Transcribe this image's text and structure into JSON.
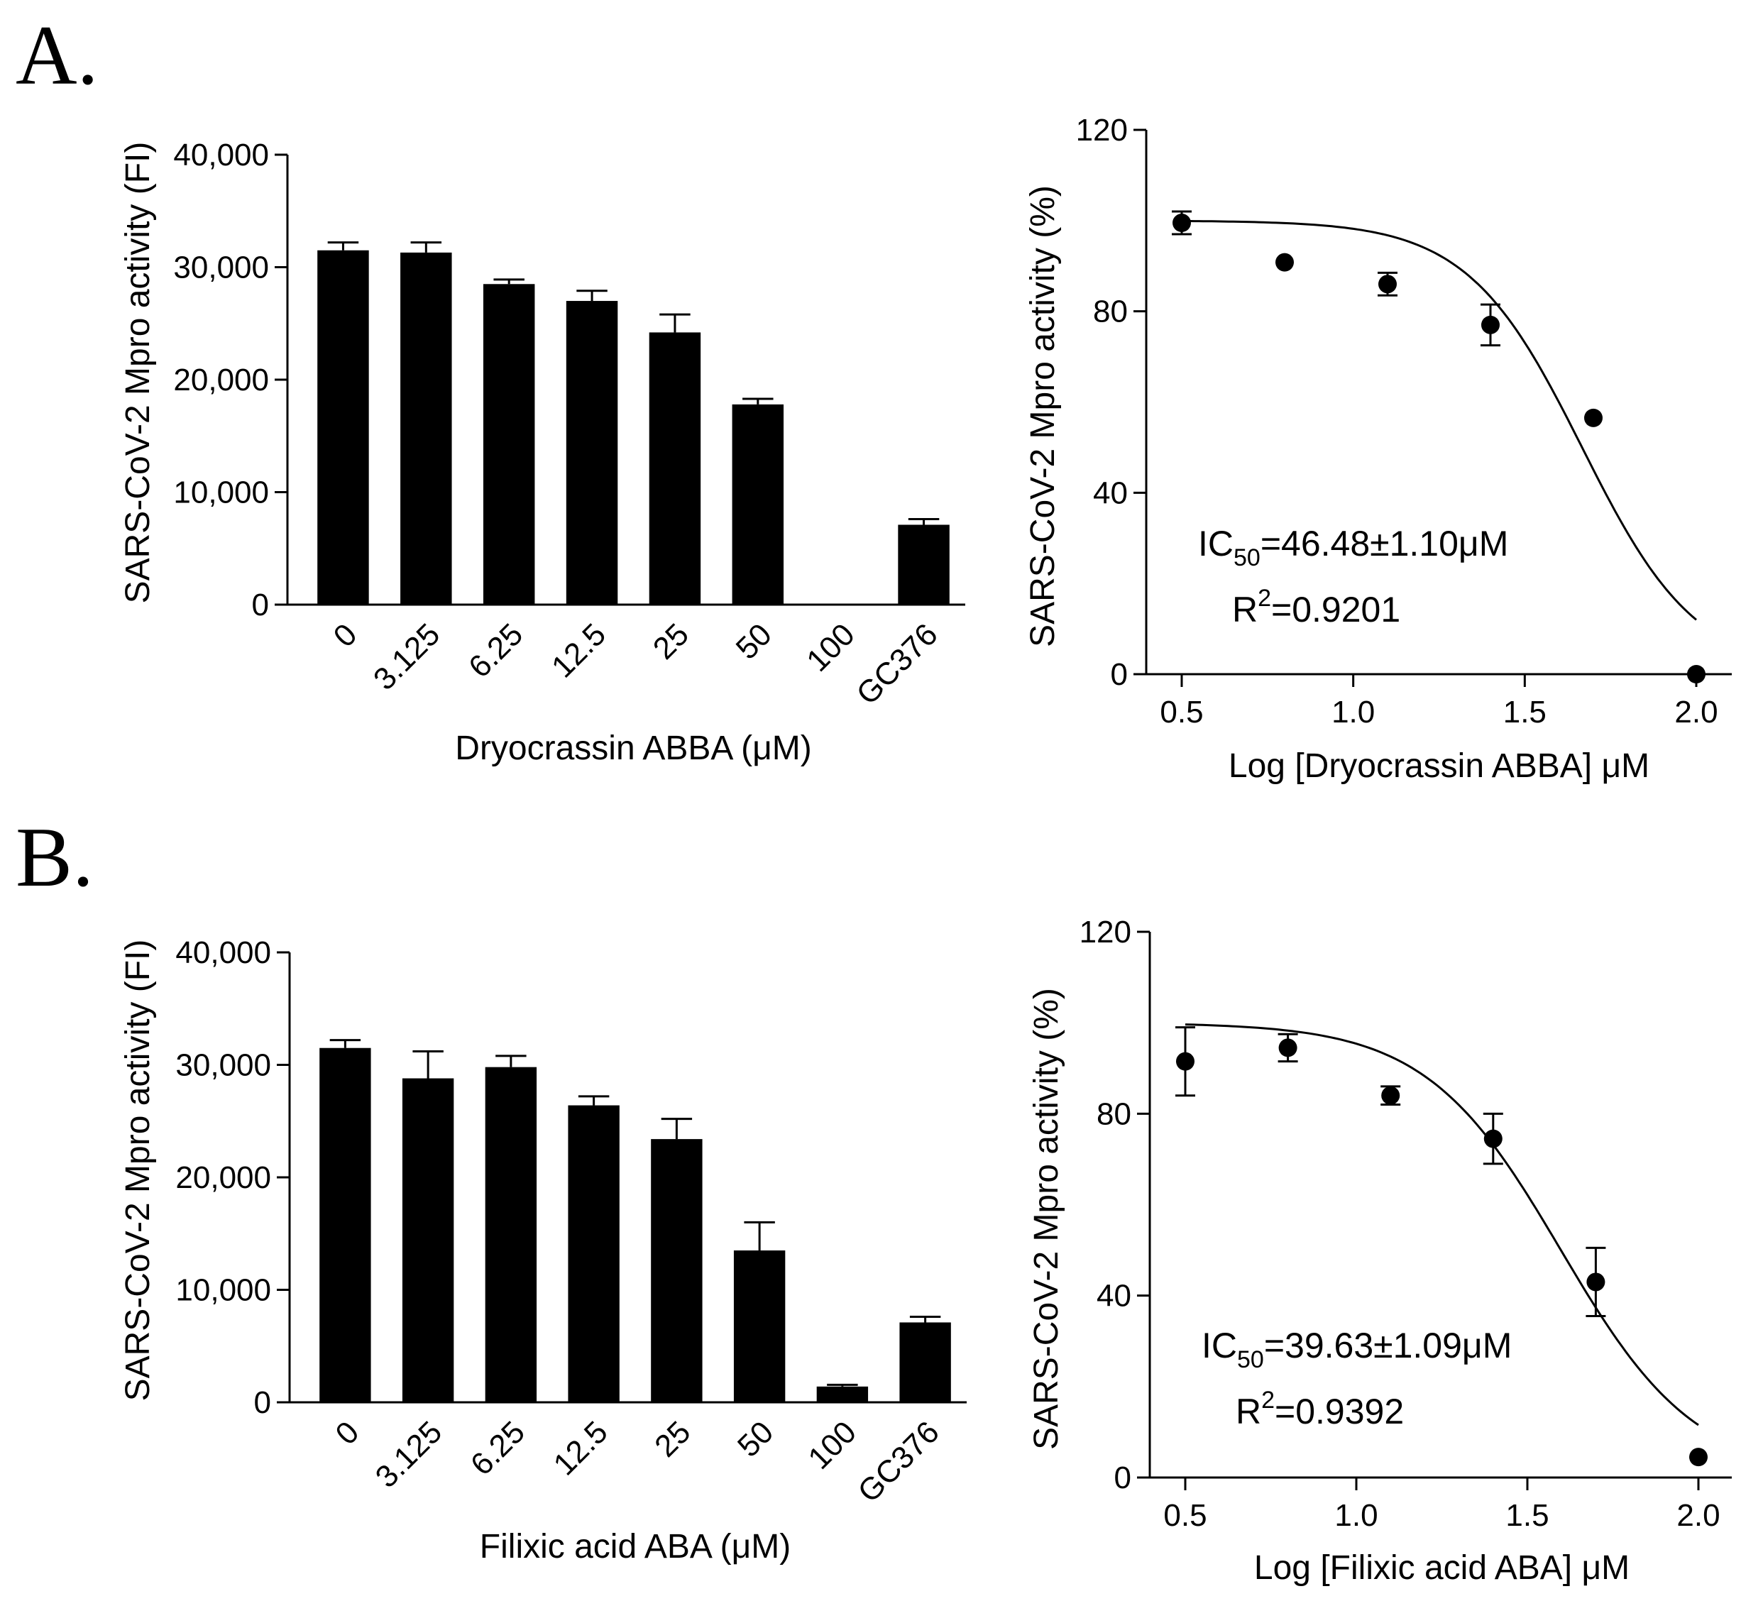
{
  "figure": {
    "panel_labels": [
      "A.",
      "B."
    ]
  },
  "chart_data": [
    {
      "id": "A-bar",
      "type": "bar",
      "categories": [
        "0",
        "3.125",
        "6.25",
        "12.5",
        "25",
        "50",
        "100",
        "GC376"
      ],
      "values": [
        31500,
        31300,
        28500,
        27000,
        24200,
        17800,
        0,
        7100
      ],
      "errors": [
        700,
        900,
        400,
        900,
        1600,
        500,
        0,
        500
      ],
      "xlabel": "Dryocrassin ABBA (μM)",
      "ylabel": "SARS-CoV-2 Mpro activity (FI)",
      "ylim": [
        0,
        40000
      ],
      "yticks": [
        0,
        10000,
        20000,
        30000,
        40000
      ],
      "ytick_labels": [
        "0",
        "10,000",
        "20,000",
        "30,000",
        "40,000"
      ],
      "color": "#000000"
    },
    {
      "id": "A-curve",
      "type": "scatter",
      "x": [
        0.5,
        0.8,
        1.1,
        1.4,
        1.7,
        2.0
      ],
      "y": [
        99.5,
        90.8,
        86,
        77,
        56.5,
        0
      ],
      "errors": [
        2.5,
        0,
        2.5,
        4.5,
        0,
        0
      ],
      "fit": {
        "top": 100,
        "bottom": 0,
        "log_ic50": 1.667,
        "hill": 2.6
      },
      "xlabel": "Log [Dryocrassin ABBA] μM",
      "ylabel": "SARS-CoV-2 Mpro activity (%)",
      "xlim": [
        0.5,
        2.0
      ],
      "ylim": [
        0,
        120
      ],
      "xticks": [
        0.5,
        1.0,
        1.5,
        2.0
      ],
      "xtick_labels": [
        "0.5",
        "1.0",
        "1.5",
        "2.0"
      ],
      "yticks": [
        0,
        40,
        80,
        120
      ],
      "ytick_labels": [
        "0",
        "40",
        "80",
        "120"
      ],
      "annotation_ic50": {
        "prefix": "IC",
        "sub": "50",
        "value": "=46.48±1.10μM"
      },
      "annotation_r2": {
        "prefix": "R",
        "sup": "2",
        "value": "=0.9201"
      }
    },
    {
      "id": "B-bar",
      "type": "bar",
      "categories": [
        "0",
        "3.125",
        "6.25",
        "12.5",
        "25",
        "50",
        "100",
        "GC376"
      ],
      "values": [
        31500,
        28800,
        29800,
        26400,
        23400,
        13500,
        1400,
        7100
      ],
      "errors": [
        700,
        2400,
        1000,
        800,
        1800,
        2500,
        150,
        500
      ],
      "xlabel": "Filixic acid ABA (μM)",
      "ylabel": "SARS-CoV-2 Mpro activity (FI)",
      "ylim": [
        0,
        40000
      ],
      "yticks": [
        0,
        10000,
        20000,
        30000,
        40000
      ],
      "ytick_labels": [
        "0",
        "10,000",
        "20,000",
        "30,000",
        "40,000"
      ],
      "color": "#000000"
    },
    {
      "id": "B-curve",
      "type": "scatter",
      "x": [
        0.5,
        0.8,
        1.1,
        1.4,
        1.7,
        2.0
      ],
      "y": [
        91.5,
        94.5,
        84,
        74.5,
        43,
        4.5
      ],
      "errors": [
        7.5,
        3,
        2,
        5.5,
        7.5,
        0
      ],
      "fit": {
        "top": 100,
        "bottom": 0,
        "log_ic50": 1.598,
        "hill": 2.2
      },
      "xlabel": "Log [Filixic acid ABA] μM",
      "ylabel": "SARS-CoV-2 Mpro activity (%)",
      "xlim": [
        0.5,
        2.0
      ],
      "ylim": [
        0,
        120
      ],
      "xticks": [
        0.5,
        1.0,
        1.5,
        2.0
      ],
      "xtick_labels": [
        "0.5",
        "1.0",
        "1.5",
        "2.0"
      ],
      "yticks": [
        0,
        40,
        80,
        120
      ],
      "ytick_labels": [
        "0",
        "40",
        "80",
        "120"
      ],
      "annotation_ic50": {
        "prefix": "IC",
        "sub": "50",
        "value": "=39.63±1.09μM"
      },
      "annotation_r2": {
        "prefix": "R",
        "sup": "2",
        "value": "=0.9392"
      }
    }
  ]
}
